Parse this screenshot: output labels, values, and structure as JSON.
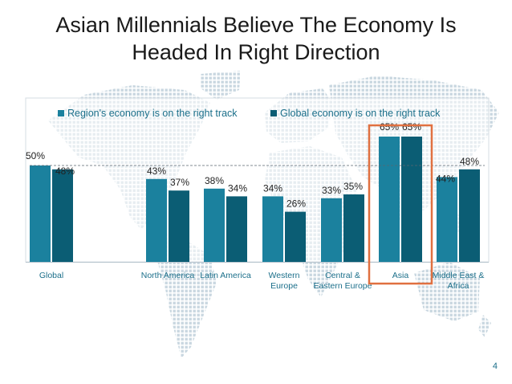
{
  "slide": {
    "title_line1": "Asian Millennials Believe The Economy Is",
    "title_line2": "Headed In Right Direction",
    "page_number": "4"
  },
  "colors": {
    "region": "#1b819e",
    "global": "#0b5d74",
    "highlight": "#e07040",
    "map": "#c9d7e0"
  },
  "chart_data": {
    "type": "bar",
    "title": "",
    "xlabel": "",
    "ylabel": "",
    "ylim": [
      0,
      100
    ],
    "legend_position": "top",
    "categories": [
      [
        "Global"
      ],
      [
        "North America"
      ],
      [
        "Latin America"
      ],
      [
        "Western",
        "Europe"
      ],
      [
        "Central &",
        "Eastern Europe"
      ],
      [
        "Asia"
      ],
      [
        "Middle East &",
        "Africa"
      ]
    ],
    "series": [
      {
        "name": "Region's economy is on the right track",
        "values": [
          50,
          43,
          38,
          34,
          33,
          65,
          44
        ]
      },
      {
        "name": "Global economy is on the right track",
        "values": [
          48,
          37,
          34,
          26,
          35,
          65,
          48
        ]
      }
    ],
    "data_labels": [
      [
        "50%",
        "43%",
        "38%",
        "34%",
        "33%",
        "65%",
        "44%"
      ],
      [
        "48%",
        "37%",
        "34%",
        "26%",
        "35%",
        "65%",
        "48%"
      ]
    ],
    "reference_line": 50,
    "highlighted_category": "Asia"
  }
}
